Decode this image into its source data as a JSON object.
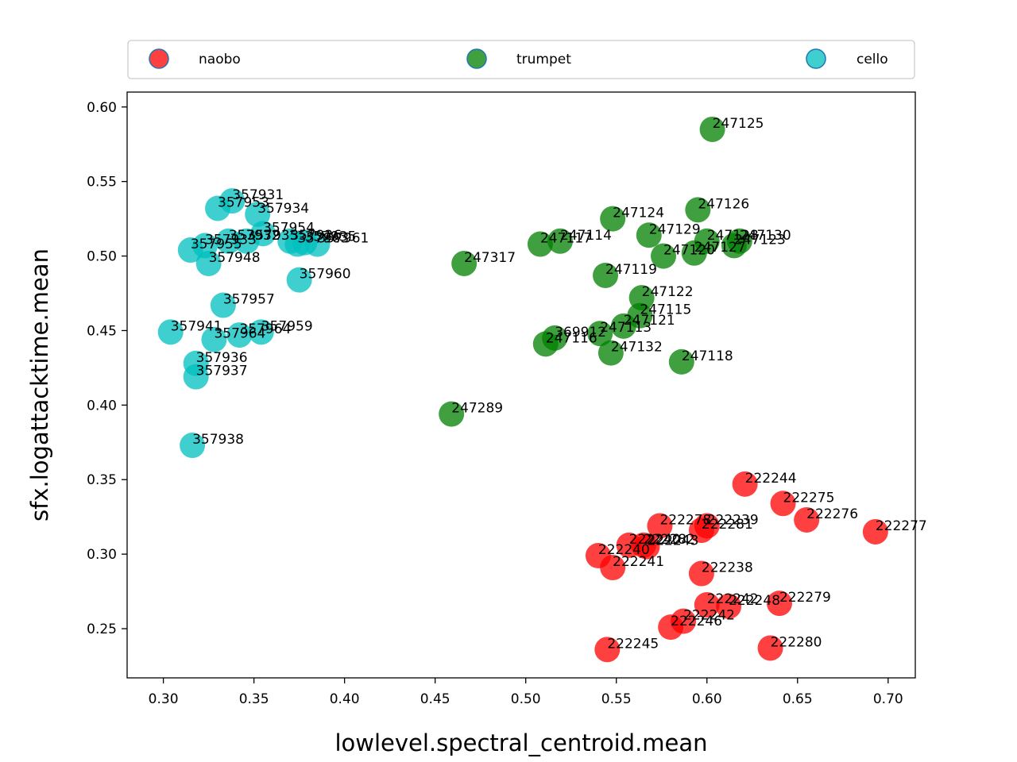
{
  "chart_data": {
    "type": "scatter",
    "xlabel": "lowlevel.spectral_centroid.mean",
    "ylabel": "sfx.logattacktime.mean",
    "xlim": [
      0.28,
      0.715
    ],
    "ylim": [
      0.217,
      0.61
    ],
    "xticks": [
      "0.30",
      "0.35",
      "0.40",
      "0.45",
      "0.50",
      "0.55",
      "0.60",
      "0.65",
      "0.70"
    ],
    "yticks": [
      "0.25",
      "0.30",
      "0.35",
      "0.40",
      "0.45",
      "0.50",
      "0.55",
      "0.60"
    ],
    "legend_position": "top",
    "grid": false,
    "series": [
      {
        "name": "naobo",
        "color": "#ff0000",
        "points": [
          {
            "x": 0.621,
            "y": 0.347,
            "label": "222244"
          },
          {
            "x": 0.642,
            "y": 0.334,
            "label": "222275"
          },
          {
            "x": 0.655,
            "y": 0.323,
            "label": "222276"
          },
          {
            "x": 0.693,
            "y": 0.315,
            "label": "222277"
          },
          {
            "x": 0.574,
            "y": 0.319,
            "label": "222278"
          },
          {
            "x": 0.6,
            "y": 0.319,
            "label": "222239"
          },
          {
            "x": 0.597,
            "y": 0.316,
            "label": "222281"
          },
          {
            "x": 0.557,
            "y": 0.306,
            "label": "222240"
          },
          {
            "x": 0.565,
            "y": 0.306,
            "label": "222282"
          },
          {
            "x": 0.567,
            "y": 0.305,
            "label": "222243"
          },
          {
            "x": 0.54,
            "y": 0.299,
            "label": "222240"
          },
          {
            "x": 0.548,
            "y": 0.291,
            "label": "222241"
          },
          {
            "x": 0.597,
            "y": 0.287,
            "label": "222238"
          },
          {
            "x": 0.64,
            "y": 0.267,
            "label": "222279"
          },
          {
            "x": 0.6,
            "y": 0.266,
            "label": "222242"
          },
          {
            "x": 0.612,
            "y": 0.265,
            "label": "222248"
          },
          {
            "x": 0.587,
            "y": 0.255,
            "label": "222242"
          },
          {
            "x": 0.58,
            "y": 0.251,
            "label": "222246"
          },
          {
            "x": 0.545,
            "y": 0.236,
            "label": "222245"
          },
          {
            "x": 0.635,
            "y": 0.237,
            "label": "222280"
          }
        ]
      },
      {
        "name": "trumpet",
        "color": "#008000",
        "points": [
          {
            "x": 0.603,
            "y": 0.585,
            "label": "247125"
          },
          {
            "x": 0.595,
            "y": 0.531,
            "label": "247126"
          },
          {
            "x": 0.548,
            "y": 0.525,
            "label": "247124"
          },
          {
            "x": 0.568,
            "y": 0.514,
            "label": "247129"
          },
          {
            "x": 0.6,
            "y": 0.51,
            "label": "247128"
          },
          {
            "x": 0.618,
            "y": 0.51,
            "label": "247130"
          },
          {
            "x": 0.519,
            "y": 0.51,
            "label": "247114"
          },
          {
            "x": 0.508,
            "y": 0.508,
            "label": "247117"
          },
          {
            "x": 0.615,
            "y": 0.507,
            "label": "247123"
          },
          {
            "x": 0.593,
            "y": 0.502,
            "label": "247127"
          },
          {
            "x": 0.576,
            "y": 0.5,
            "label": "247120"
          },
          {
            "x": 0.466,
            "y": 0.495,
            "label": "247317"
          },
          {
            "x": 0.544,
            "y": 0.487,
            "label": "247119"
          },
          {
            "x": 0.564,
            "y": 0.472,
            "label": "247122"
          },
          {
            "x": 0.563,
            "y": 0.46,
            "label": "247115"
          },
          {
            "x": 0.554,
            "y": 0.453,
            "label": "247121"
          },
          {
            "x": 0.541,
            "y": 0.448,
            "label": "247113"
          },
          {
            "x": 0.516,
            "y": 0.445,
            "label": "369912"
          },
          {
            "x": 0.511,
            "y": 0.441,
            "label": "247116"
          },
          {
            "x": 0.547,
            "y": 0.435,
            "label": "247132"
          },
          {
            "x": 0.586,
            "y": 0.429,
            "label": "247118"
          },
          {
            "x": 0.459,
            "y": 0.394,
            "label": "247289"
          }
        ]
      },
      {
        "name": "cello",
        "color": "#00bfbf",
        "points": [
          {
            "x": 0.338,
            "y": 0.537,
            "label": "357931"
          },
          {
            "x": 0.33,
            "y": 0.532,
            "label": "357953"
          },
          {
            "x": 0.352,
            "y": 0.528,
            "label": "357934"
          },
          {
            "x": 0.355,
            "y": 0.515,
            "label": "357954"
          },
          {
            "x": 0.37,
            "y": 0.51,
            "label": "357926"
          },
          {
            "x": 0.374,
            "y": 0.508,
            "label": "357963"
          },
          {
            "x": 0.385,
            "y": 0.508,
            "label": "357961"
          },
          {
            "x": 0.378,
            "y": 0.509,
            "label": "357935"
          },
          {
            "x": 0.336,
            "y": 0.51,
            "label": "357932"
          },
          {
            "x": 0.346,
            "y": 0.51,
            "label": "357935"
          },
          {
            "x": 0.323,
            "y": 0.507,
            "label": "357933"
          },
          {
            "x": 0.315,
            "y": 0.504,
            "label": "357955"
          },
          {
            "x": 0.325,
            "y": 0.495,
            "label": "357948"
          },
          {
            "x": 0.375,
            "y": 0.484,
            "label": "357960"
          },
          {
            "x": 0.333,
            "y": 0.467,
            "label": "357957"
          },
          {
            "x": 0.304,
            "y": 0.449,
            "label": "357941"
          },
          {
            "x": 0.354,
            "y": 0.449,
            "label": "357959"
          },
          {
            "x": 0.342,
            "y": 0.447,
            "label": "357964"
          },
          {
            "x": 0.328,
            "y": 0.444,
            "label": "357964"
          },
          {
            "x": 0.318,
            "y": 0.428,
            "label": "357936"
          },
          {
            "x": 0.318,
            "y": 0.419,
            "label": "357937"
          },
          {
            "x": 0.316,
            "y": 0.373,
            "label": "357938"
          }
        ]
      }
    ]
  }
}
